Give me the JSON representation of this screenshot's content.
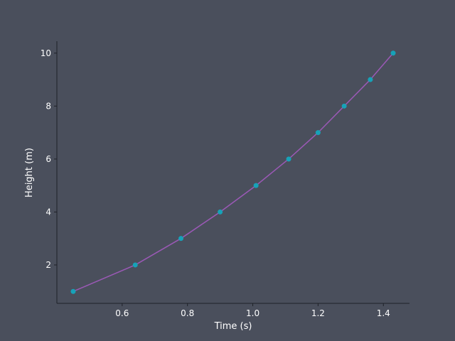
{
  "chart_data": {
    "type": "line",
    "title": "",
    "xlabel": "Time (s)",
    "ylabel": "Height (m)",
    "xlim": [
      0.4,
      1.48
    ],
    "ylim": [
      0.55,
      10.45
    ],
    "xticks": [
      0.6,
      0.8,
      1.0,
      1.2,
      1.4
    ],
    "xtick_labels": [
      "0.6",
      "0.8",
      "1.0",
      "1.2",
      "1.4"
    ],
    "yticks": [
      2,
      4,
      6,
      8,
      10
    ],
    "ytick_labels": [
      "2",
      "4",
      "6",
      "8",
      "10"
    ],
    "grid": false,
    "series": [
      {
        "x": [
          0.45,
          0.64,
          0.78,
          0.9,
          1.01,
          1.11,
          1.2,
          1.28,
          1.36,
          1.43
        ],
        "y": [
          1,
          2,
          3,
          4,
          5,
          6,
          7,
          8,
          9,
          10
        ],
        "line_color": "#9b59b6",
        "marker_color": "#17a2b8"
      }
    ]
  }
}
